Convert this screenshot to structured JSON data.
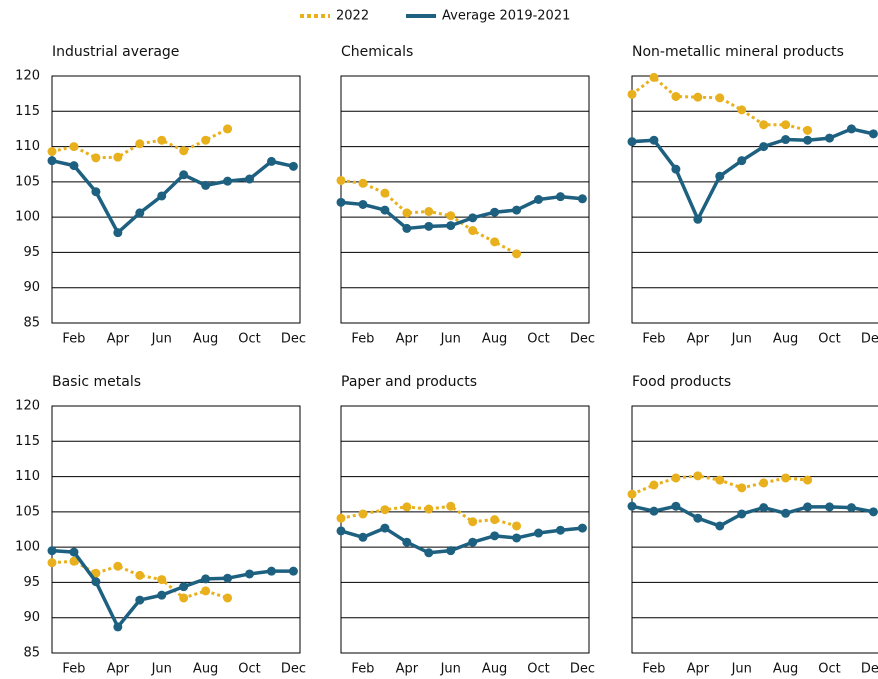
{
  "legend": [
    {
      "name": "2022",
      "color": "#e8b01c",
      "dash": true
    },
    {
      "name": "Average 2019-2021",
      "color": "#1d6080",
      "dash": false
    }
  ],
  "chart_data": [
    {
      "type": "line",
      "title": "Industrial average",
      "categories": [
        null,
        "Feb",
        null,
        "Apr",
        null,
        "Jun",
        null,
        "Aug",
        null,
        "Oct",
        null,
        "Dec"
      ],
      "ylim": [
        85,
        120
      ],
      "yticks": [
        85,
        90,
        95,
        100,
        105,
        110,
        115,
        120
      ],
      "series": [
        {
          "values": [
            109.3,
            110,
            108.4,
            108.5,
            110.4,
            110.9,
            109.4,
            110.9,
            112.5,
            null,
            null,
            null
          ]
        },
        {
          "values": [
            108,
            107.3,
            103.6,
            97.8,
            100.6,
            103,
            106,
            104.5,
            105.1,
            105.4,
            107.9,
            107.2
          ]
        }
      ]
    },
    {
      "type": "line",
      "title": "Chemicals",
      "categories": [
        null,
        "Feb",
        null,
        "Apr",
        null,
        "Jun",
        null,
        "Aug",
        null,
        "Oct",
        null,
        "Dec"
      ],
      "ylim": [
        85,
        120
      ],
      "yticks": [
        85,
        90,
        95,
        100,
        105,
        110,
        115,
        120
      ],
      "series": [
        {
          "values": [
            105.2,
            104.8,
            103.4,
            100.6,
            100.8,
            100.2,
            98.1,
            96.5,
            94.8,
            null,
            null,
            null
          ]
        },
        {
          "values": [
            102.1,
            101.8,
            101,
            98.4,
            98.7,
            98.8,
            99.9,
            100.7,
            101,
            102.5,
            102.9,
            102.6
          ]
        }
      ]
    },
    {
      "type": "line",
      "title": "Non-metallic mineral products",
      "categories": [
        null,
        "Feb",
        null,
        "Apr",
        null,
        "Jun",
        null,
        "Aug",
        null,
        "Oct",
        null,
        "Dec"
      ],
      "ylim": [
        85,
        120
      ],
      "yticks": [
        85,
        90,
        95,
        100,
        105,
        110,
        115,
        120
      ],
      "series": [
        {
          "values": [
            117.4,
            119.8,
            117.1,
            117,
            116.9,
            115.2,
            113.1,
            113.1,
            112.3,
            null,
            null,
            null
          ]
        },
        {
          "values": [
            110.7,
            110.9,
            106.8,
            99.7,
            105.8,
            108,
            110,
            111,
            110.9,
            111.2,
            112.5,
            111.8
          ]
        }
      ]
    },
    {
      "type": "line",
      "title": "Basic metals",
      "categories": [
        null,
        "Feb",
        null,
        "Apr",
        null,
        "Jun",
        null,
        "Aug",
        null,
        "Oct",
        null,
        "Dec"
      ],
      "ylim": [
        85,
        120
      ],
      "yticks": [
        85,
        90,
        95,
        100,
        105,
        110,
        115,
        120
      ],
      "series": [
        {
          "values": [
            97.8,
            98,
            96.3,
            97.3,
            96,
            95.4,
            92.8,
            93.8,
            92.8,
            null,
            null,
            null
          ]
        },
        {
          "values": [
            99.5,
            99.3,
            95.1,
            88.7,
            92.5,
            93.2,
            94.4,
            95.5,
            95.6,
            96.2,
            96.6,
            96.6
          ]
        }
      ]
    },
    {
      "type": "line",
      "title": "Paper and products",
      "categories": [
        null,
        "Feb",
        null,
        "Apr",
        null,
        "Jun",
        null,
        "Aug",
        null,
        "Oct",
        null,
        "Dec"
      ],
      "ylim": [
        85,
        120
      ],
      "yticks": [
        85,
        90,
        95,
        100,
        105,
        110,
        115,
        120
      ],
      "series": [
        {
          "values": [
            104.1,
            104.7,
            105.3,
            105.7,
            105.4,
            105.8,
            103.6,
            103.9,
            103,
            null,
            null,
            null
          ]
        },
        {
          "values": [
            102.3,
            101.4,
            102.7,
            100.7,
            99.2,
            99.5,
            100.7,
            101.6,
            101.3,
            102,
            102.4,
            102.7
          ]
        }
      ]
    },
    {
      "type": "line",
      "title": "Food products",
      "categories": [
        null,
        "Feb",
        null,
        "Apr",
        null,
        "Jun",
        null,
        "Aug",
        null,
        "Oct",
        null,
        "Dec"
      ],
      "ylim": [
        85,
        120
      ],
      "yticks": [
        85,
        90,
        95,
        100,
        105,
        110,
        115,
        120
      ],
      "series": [
        {
          "values": [
            107.5,
            108.8,
            109.8,
            110.1,
            109.5,
            108.4,
            109.1,
            109.8,
            109.5,
            null,
            null,
            null
          ]
        },
        {
          "values": [
            105.8,
            105.1,
            105.8,
            104.1,
            103,
            104.7,
            105.6,
            104.8,
            105.7,
            105.7,
            105.6,
            105
          ]
        }
      ]
    }
  ]
}
